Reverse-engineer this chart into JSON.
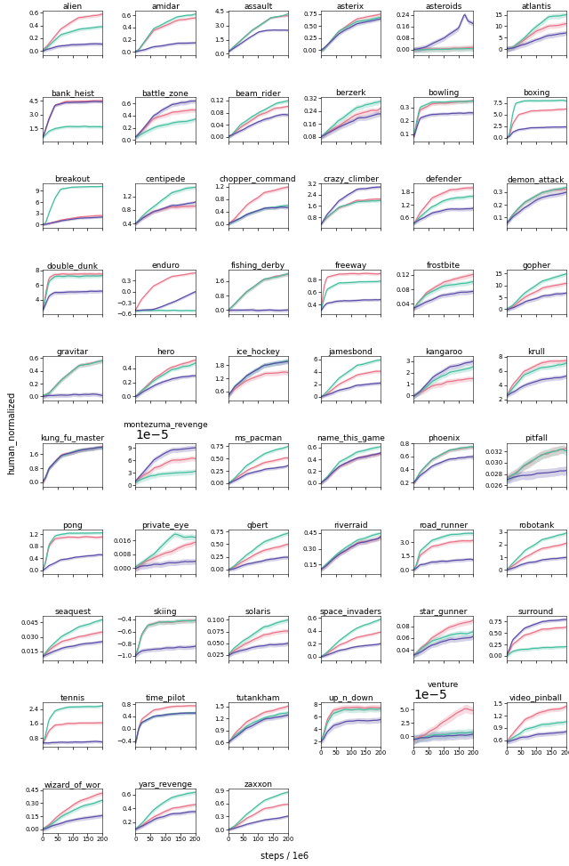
{
  "games": [
    "alien",
    "amidar",
    "assault",
    "asterix",
    "asteroids",
    "atlantis",
    "bank_heist",
    "battle_zone",
    "beam_rider",
    "berzerk",
    "bowling",
    "boxing",
    "breakout",
    "centipede",
    "chopper_command",
    "crazy_climber",
    "defender",
    "demon_attack",
    "double_dunk",
    "enduro",
    "fishing_derby",
    "freeway",
    "frostbite",
    "gopher",
    "gravitar",
    "hero",
    "ice_hockey",
    "jamesbond",
    "kangaroo",
    "krull",
    "kung_fu_master",
    "montezuma_revenge",
    "ms_pacman",
    "name_this_game",
    "phoenix",
    "pitfall",
    "pong",
    "private_eye",
    "qbert",
    "riverraid",
    "road_runner",
    "robotank",
    "seaquest",
    "skiing",
    "solaris",
    "space_invaders",
    "star_gunner",
    "surround",
    "tennis",
    "time_pilot",
    "tutankham",
    "up_n_down",
    "venture",
    "video_pinball",
    "wizard_of_wor",
    "yars_revenge",
    "zaxxon"
  ],
  "colors": {
    "pink": "#E8748A",
    "teal": "#46BEA0",
    "blue": "#5B4EA6"
  },
  "title_fontsize": 6.5,
  "tick_fontsize": 5.0,
  "label_fontsize": 7,
  "linewidth": 0.9,
  "band_alpha": 0.25
}
